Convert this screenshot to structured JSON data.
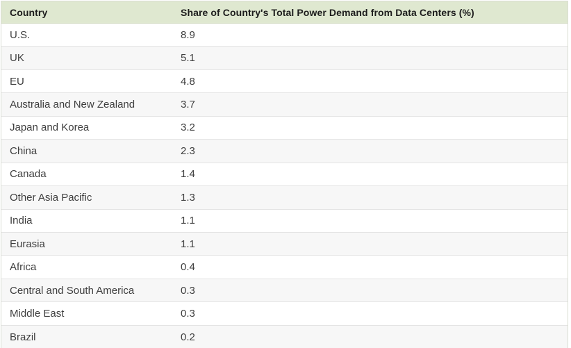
{
  "table": {
    "columns": [
      "Country",
      "Share of Country's Total Power Demand from Data Centers (%)"
    ],
    "rows": [
      {
        "country": "U.S.",
        "value": "8.9"
      },
      {
        "country": "UK",
        "value": "5.1"
      },
      {
        "country": "EU",
        "value": "4.8"
      },
      {
        "country": "Australia and New Zealand",
        "value": "3.7"
      },
      {
        "country": "Japan and Korea",
        "value": "3.2"
      },
      {
        "country": "China",
        "value": "2.3"
      },
      {
        "country": "Canada",
        "value": "1.4"
      },
      {
        "country": "Other Asia Pacific",
        "value": "1.3"
      },
      {
        "country": "India",
        "value": "1.1"
      },
      {
        "country": "Eurasia",
        "value": "1.1"
      },
      {
        "country": "Africa",
        "value": "0.4"
      },
      {
        "country": "Central and South America",
        "value": "0.3"
      },
      {
        "country": "Middle East",
        "value": "0.3"
      },
      {
        "country": "Brazil",
        "value": "0.2"
      }
    ]
  },
  "chart_data": {
    "type": "table",
    "title": "Share of Country's Total Power Demand from Data Centers (%)",
    "columns": [
      "Country",
      "Share of Country's Total Power Demand from Data Centers (%)"
    ],
    "categories": [
      "U.S.",
      "UK",
      "EU",
      "Australia and New Zealand",
      "Japan and Korea",
      "China",
      "Canada",
      "Other Asia Pacific",
      "India",
      "Eurasia",
      "Africa",
      "Central and South America",
      "Middle East",
      "Brazil"
    ],
    "values": [
      8.9,
      5.1,
      4.8,
      3.7,
      3.2,
      2.3,
      1.4,
      1.3,
      1.1,
      1.1,
      0.4,
      0.3,
      0.3,
      0.2
    ],
    "layout": {
      "header_background": "#dfe8d0",
      "alt_row_background": "#f7f7f7",
      "row_background": "#ffffff",
      "border_color": "#e4e4e4"
    }
  },
  "colors": {
    "header_bg": "#dfe8d0",
    "header_text": "#1c1c1c",
    "row_text": "#3e3e3e",
    "alt_row_bg": "#f7f7f7",
    "divider": "#e4e4e4"
  }
}
